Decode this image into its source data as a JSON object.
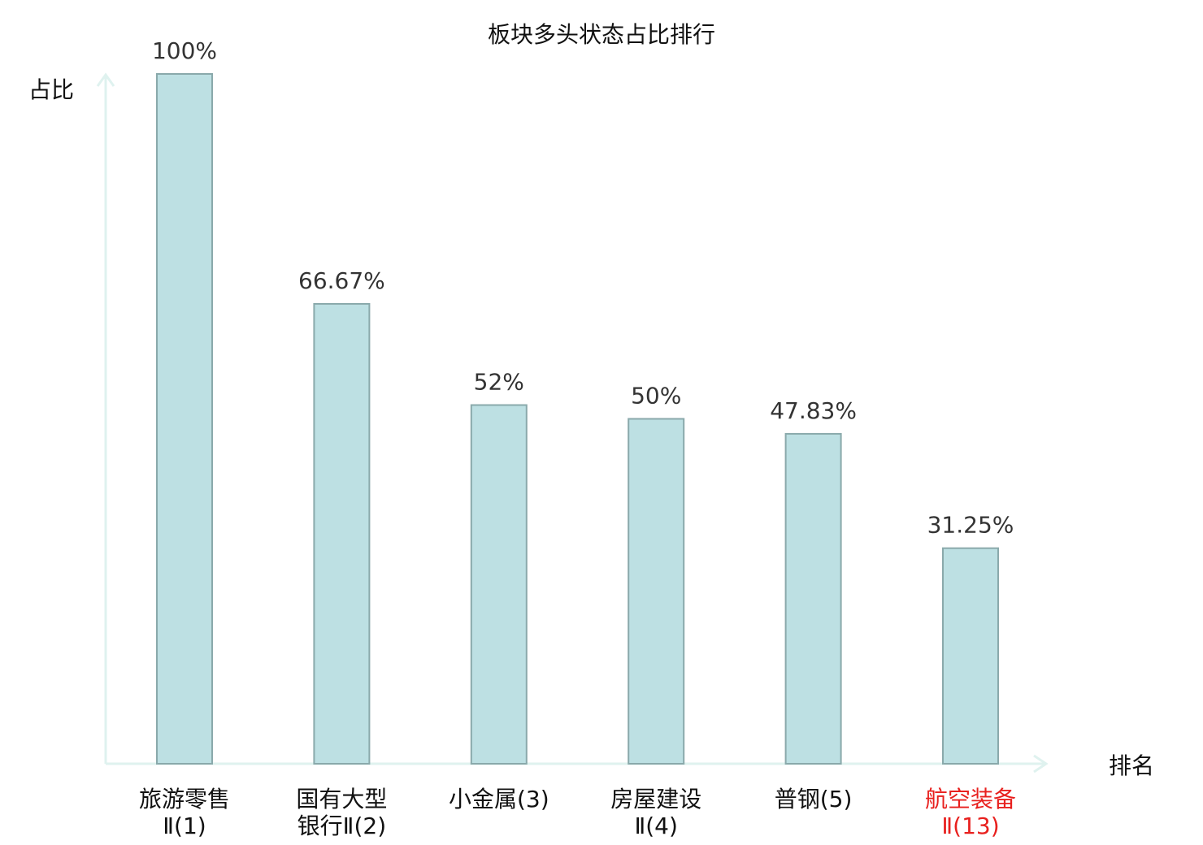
{
  "chart_data": {
    "type": "bar",
    "title": "板块多头状态占比排行",
    "ylabel": "占比",
    "xlabel": "排名",
    "ylim": [
      0,
      100
    ],
    "grid": false,
    "categories": [
      {
        "lines": [
          "旅游零售",
          "Ⅱ(1)"
        ],
        "highlight": false
      },
      {
        "lines": [
          "国有大型",
          "银行Ⅱ(2)"
        ],
        "highlight": false
      },
      {
        "lines": [
          "小金属(3)"
        ],
        "highlight": false
      },
      {
        "lines": [
          "房屋建设",
          "Ⅱ(4)"
        ],
        "highlight": false
      },
      {
        "lines": [
          "普钢(5)"
        ],
        "highlight": false
      },
      {
        "lines": [
          "航空装备",
          "Ⅱ(13)"
        ],
        "highlight": true
      }
    ],
    "values": [
      100,
      66.67,
      52,
      50,
      47.83,
      31.25
    ],
    "value_labels": [
      "100%",
      "66.67%",
      "52%",
      "50%",
      "47.83%",
      "31.25%"
    ]
  },
  "colors": {
    "bar_fill": "#bde0e3",
    "bar_stroke": "#8aa9ab",
    "axis": "#dff2ef",
    "text": "#333333",
    "label": "#111111",
    "highlight": "#e8201e"
  }
}
